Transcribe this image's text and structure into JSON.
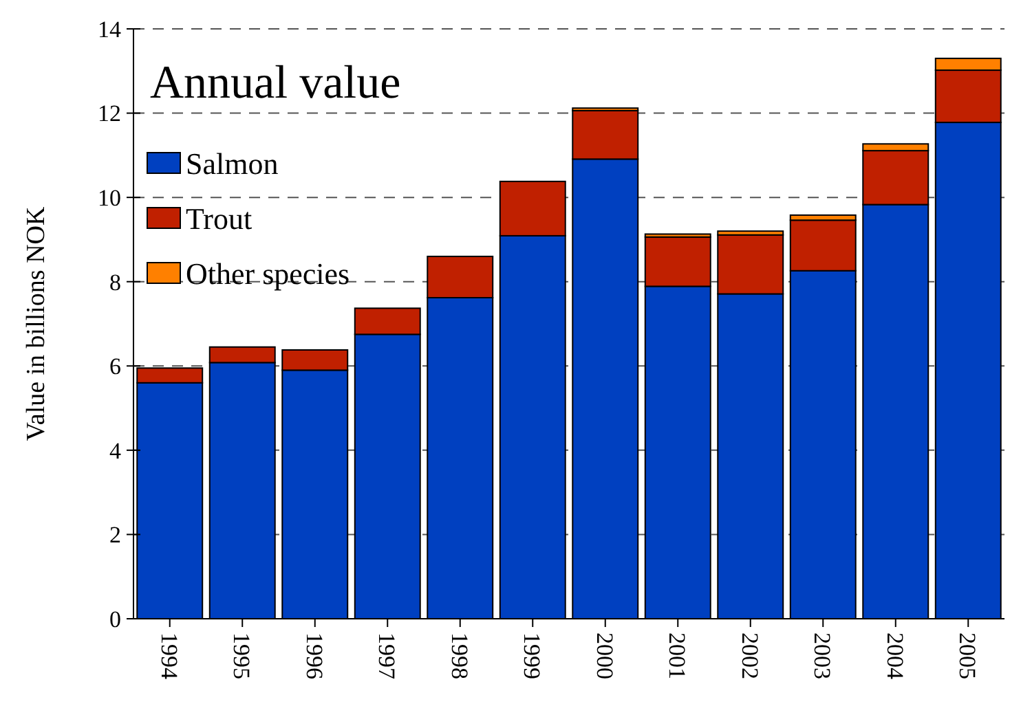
{
  "chart_data": {
    "type": "bar",
    "stacked": true,
    "title": "Annual value",
    "ylabel": "Value in billions NOK",
    "categories": [
      "1994",
      "1995",
      "1996",
      "1997",
      "1998",
      "1999",
      "2000",
      "2001",
      "2002",
      "2003",
      "2004",
      "2005"
    ],
    "series": [
      {
        "name": "Salmon",
        "color": "#0040c0",
        "values": [
          5.6,
          6.08,
          5.9,
          6.75,
          7.62,
          9.09,
          10.91,
          7.89,
          7.71,
          8.26,
          9.83,
          11.78
        ]
      },
      {
        "name": "Trout",
        "color": "#c02000",
        "values": [
          0.35,
          0.37,
          0.48,
          0.62,
          0.98,
          1.29,
          1.15,
          1.17,
          1.4,
          1.2,
          1.28,
          1.24
        ]
      },
      {
        "name": "Other species",
        "color": "#ff8000",
        "values": [
          null,
          null,
          null,
          null,
          null,
          null,
          0.06,
          0.07,
          0.09,
          0.12,
          0.16,
          0.28
        ]
      }
    ],
    "ylim": [
      0,
      14
    ],
    "yticks": [
      0,
      2,
      4,
      6,
      8,
      10,
      12,
      14
    ],
    "grid": "y",
    "legend": "top left"
  }
}
